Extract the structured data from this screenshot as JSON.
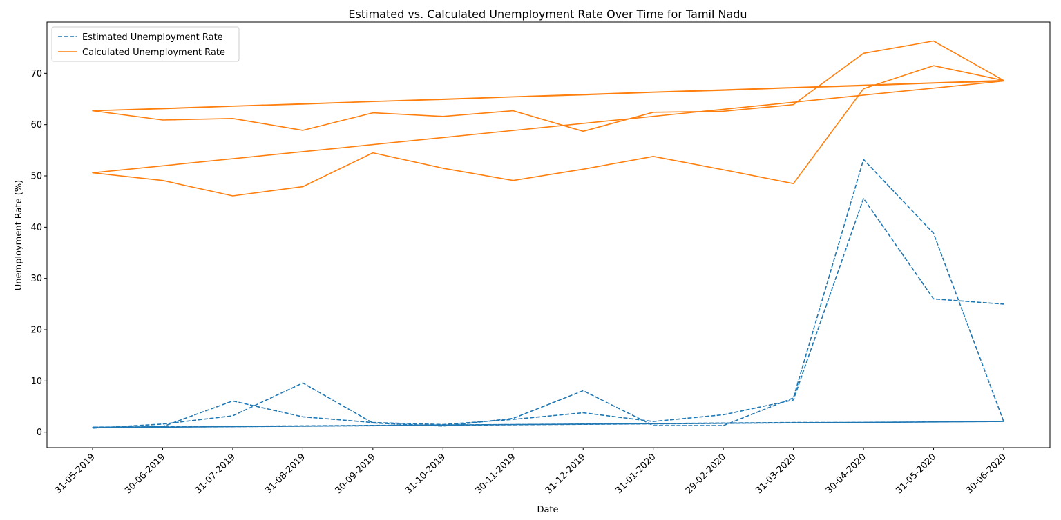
{
  "chart_data": {
    "type": "line",
    "title": "Estimated vs. Calculated Unemployment Rate Over Time for Tamil Nadu",
    "xlabel": "Date",
    "ylabel": "Unemployment Rate (%)",
    "ylim": [
      -3,
      80
    ],
    "yticks": [
      0,
      10,
      20,
      30,
      40,
      50,
      60,
      70
    ],
    "grid": false,
    "legend_placement": "top-left",
    "categories": [
      "31-05-2019",
      "30-06-2019",
      "31-07-2019",
      "31-08-2019",
      "30-09-2019",
      "31-10-2019",
      "30-11-2019",
      "31-12-2019",
      "31-01-2020",
      "29-02-2020",
      "31-03-2020",
      "30-04-2020",
      "31-05-2020",
      "30-06-2020"
    ],
    "series": [
      {
        "name": "Estimated Unemployment Rate",
        "color": "#1f77b4",
        "style": "dashed",
        "points": [
          [
            "31-05-2019",
            0.8
          ],
          [
            "30-06-2019",
            1.6
          ],
          [
            "31-07-2019",
            3.2
          ],
          [
            "31-08-2019",
            9.6
          ],
          [
            "30-09-2019",
            1.8
          ],
          [
            "31-10-2019",
            1.2
          ],
          [
            "30-11-2019",
            2.7
          ],
          [
            "31-12-2019",
            8.1
          ],
          [
            "31-01-2020",
            1.3
          ],
          [
            "29-02-2020",
            1.3
          ],
          [
            "31-03-2020",
            6.7
          ],
          [
            "30-04-2020",
            53.2
          ],
          [
            "31-05-2020",
            38.8
          ],
          [
            "30-06-2020",
            2.1
          ],
          [
            "31-05-2019",
            1.0
          ],
          [
            "30-06-2019",
            1.0
          ],
          [
            "31-07-2019",
            1.1
          ],
          [
            "31-08-2019",
            1.2
          ],
          [
            "30-09-2019",
            1.3
          ],
          [
            "31-10-2019",
            1.4
          ],
          [
            "30-11-2019",
            1.5
          ],
          [
            "31-12-2019",
            1.6
          ],
          [
            "31-01-2020",
            1.7
          ],
          [
            "29-02-2020",
            1.8
          ],
          [
            "31-03-2020",
            1.9
          ],
          [
            "30-04-2020",
            1.9
          ],
          [
            "31-05-2020",
            2.0
          ],
          [
            "30-06-2020",
            2.1
          ],
          [
            "31-05-2019",
            0.9
          ],
          [
            "30-06-2019",
            1.1
          ],
          [
            "31-07-2019",
            6.1
          ],
          [
            "31-08-2019",
            3.0
          ],
          [
            "30-09-2019",
            1.9
          ],
          [
            "31-10-2019",
            1.5
          ],
          [
            "30-11-2019",
            2.5
          ],
          [
            "31-12-2019",
            3.8
          ],
          [
            "31-01-2020",
            2.1
          ],
          [
            "29-02-2020",
            3.4
          ],
          [
            "31-03-2020",
            6.3
          ],
          [
            "30-04-2020",
            45.6
          ],
          [
            "31-05-2020",
            26.0
          ],
          [
            "30-06-2020",
            25.0
          ]
        ]
      },
      {
        "name": "Calculated Unemployment Rate",
        "color": "#ff7f0e",
        "style": "solid",
        "points": [
          [
            "31-05-2019",
            62.7
          ],
          [
            "30-06-2019",
            60.9
          ],
          [
            "31-07-2019",
            61.2
          ],
          [
            "31-08-2019",
            58.9
          ],
          [
            "30-09-2019",
            62.3
          ],
          [
            "31-10-2019",
            61.6
          ],
          [
            "30-11-2019",
            62.7
          ],
          [
            "31-12-2019",
            58.7
          ],
          [
            "31-01-2020",
            62.4
          ],
          [
            "29-02-2020",
            62.6
          ],
          [
            "31-03-2020",
            63.9
          ],
          [
            "30-04-2020",
            73.9
          ],
          [
            "31-05-2020",
            76.3
          ],
          [
            "30-06-2020",
            68.6
          ],
          [
            "31-05-2019",
            62.7
          ],
          [
            "30-06-2019",
            63.1
          ],
          [
            "31-07-2019",
            63.6
          ],
          [
            "31-08-2019",
            64.0
          ],
          [
            "30-09-2019",
            64.5
          ],
          [
            "31-10-2019",
            64.9
          ],
          [
            "30-11-2019",
            65.4
          ],
          [
            "31-12-2019",
            65.8
          ],
          [
            "31-01-2020",
            66.3
          ],
          [
            "29-02-2020",
            66.7
          ],
          [
            "31-03-2020",
            67.2
          ],
          [
            "30-04-2020",
            67.6
          ],
          [
            "31-05-2020",
            68.1
          ],
          [
            "30-06-2020",
            68.5
          ],
          [
            "31-05-2019",
            50.6
          ],
          [
            "30-06-2019",
            49.1
          ],
          [
            "31-07-2019",
            46.1
          ],
          [
            "31-08-2019",
            47.9
          ],
          [
            "30-09-2019",
            54.5
          ],
          [
            "31-10-2019",
            51.5
          ],
          [
            "30-11-2019",
            49.1
          ],
          [
            "31-12-2019",
            51.3
          ],
          [
            "31-01-2020",
            53.8
          ],
          [
            "29-02-2020",
            51.2
          ],
          [
            "31-03-2020",
            48.5
          ],
          [
            "30-04-2020",
            67.0
          ],
          [
            "31-05-2020",
            71.5
          ],
          [
            "30-06-2020",
            68.6
          ]
        ]
      }
    ]
  }
}
